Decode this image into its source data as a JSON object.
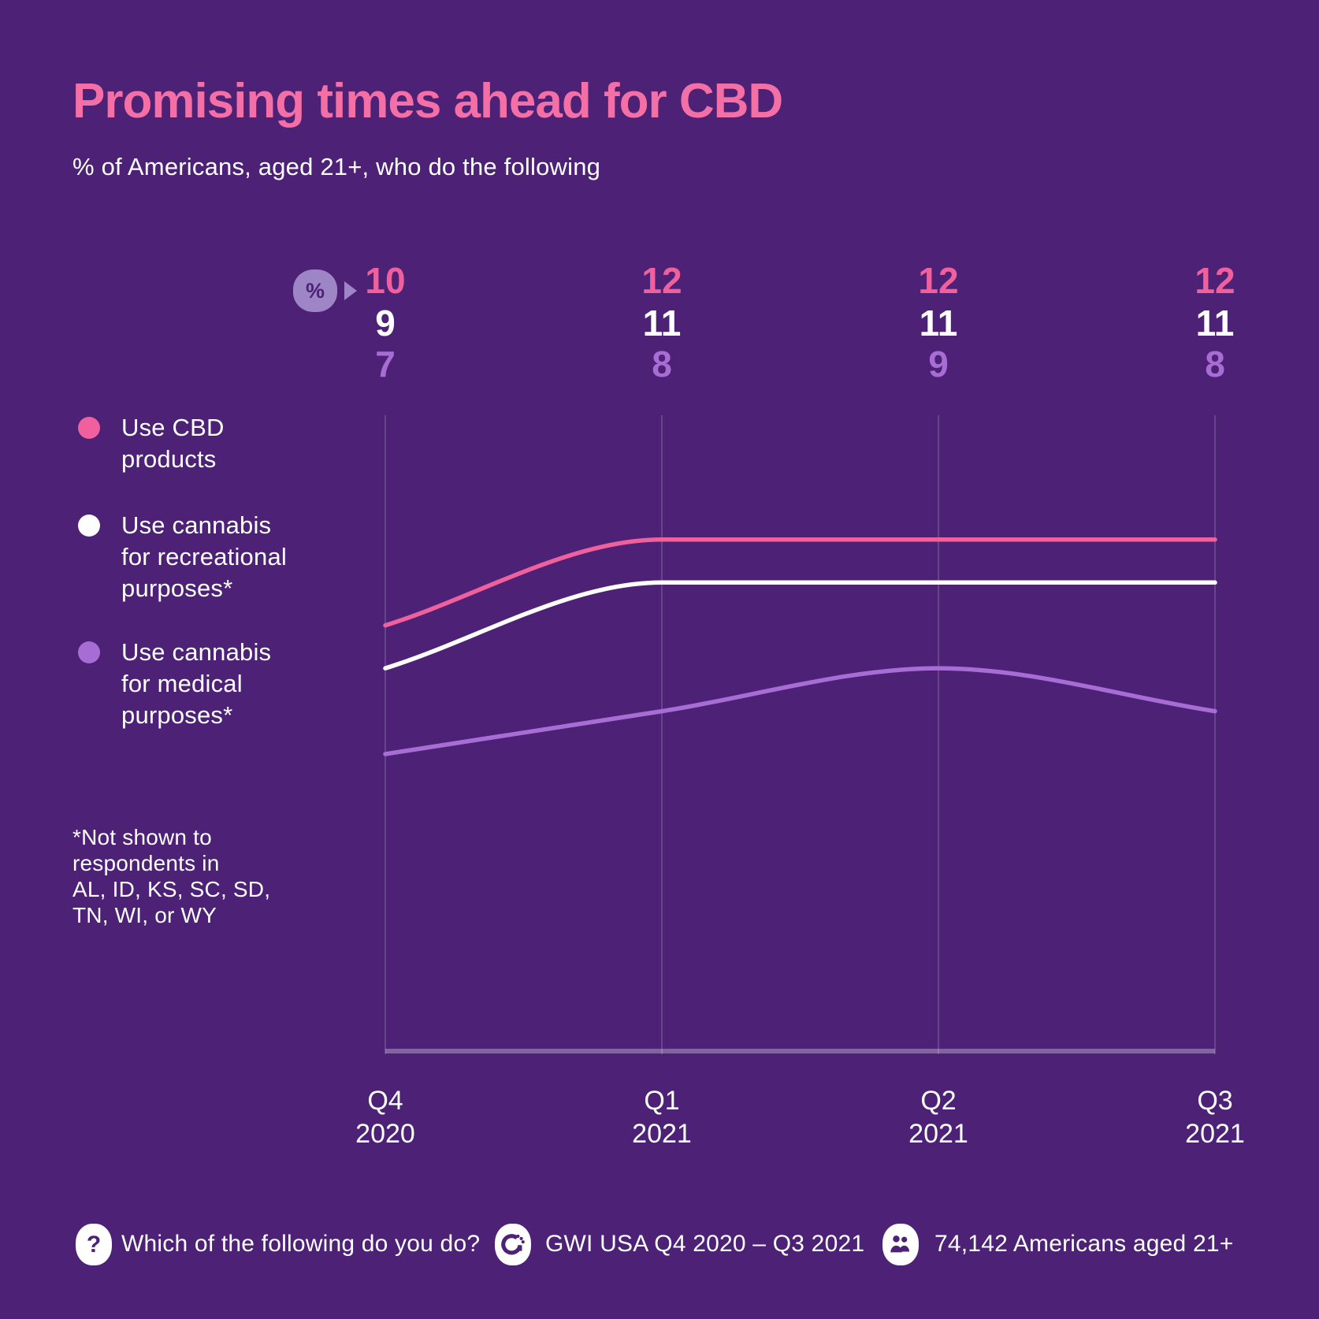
{
  "colors": {
    "background": "#4C2176",
    "title_pink": "#F46FA6",
    "pink": "#F0609C",
    "white": "#FFFFFF",
    "purple": "#A76DD4",
    "badge_bg": "#9E86C6",
    "badge_glyph": "#4C2176",
    "gridline": "rgba(255,255,255,0.16)",
    "baseline": "rgba(255,255,255,0.30)"
  },
  "header": {
    "title": "Promising times ahead for CBD",
    "subtitle": "% of Americans, aged 21+, who do the following"
  },
  "percent_badge": {
    "symbol": "%"
  },
  "chart_data": {
    "type": "line",
    "x": [
      "Q4 2020",
      "Q1 2021",
      "Q2 2021",
      "Q3 2021"
    ],
    "x_tick_labels": [
      "Q4\n2020",
      "Q1\n2021",
      "Q2\n2021",
      "Q3\n2021"
    ],
    "unit": "%",
    "ylim": [
      0,
      14.9
    ],
    "grid": "vertical-only",
    "legend_position": "left",
    "series": [
      {
        "name": "Use CBD products",
        "legend_label": "Use CBD\nproducts",
        "color": "#F0609C",
        "values": [
          10,
          12,
          12,
          12
        ]
      },
      {
        "name": "Use cannabis for recreational purposes*",
        "legend_label": "Use cannabis\nfor recreational\npurposes*",
        "color": "#FFFFFF",
        "values": [
          9,
          11,
          11,
          11
        ]
      },
      {
        "name": "Use cannabis for medical purposes*",
        "legend_label": "Use cannabis\nfor medical\npurposes*",
        "color": "#A76DD4",
        "values": [
          7,
          8,
          9,
          8
        ]
      }
    ]
  },
  "footnote": "*Not shown to\nrespondents in\nAL, ID, KS, SC, SD,\nTN, WI, or WY",
  "footer": {
    "question_label": "Which of the following do you do?",
    "question_icon": "?",
    "source_label": "GWI USA Q4 2020 – Q3 2021",
    "sample_label": "74,142 Americans aged 21+"
  }
}
